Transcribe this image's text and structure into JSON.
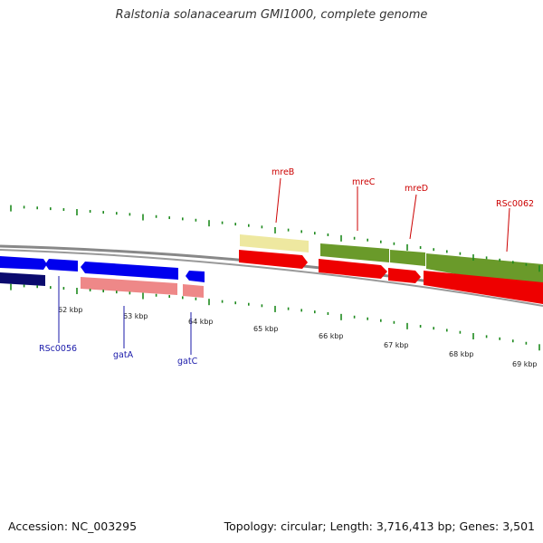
{
  "title": "Ralstonia solanacearum GMI1000, complete genome",
  "footer": {
    "accession": "Accession: NC_003295",
    "summary": "Topology: circular; Length: 3,716,413 bp; Genes: 3,501"
  },
  "kbp_labels": [
    "62 kbp",
    "63 kbp",
    "64 kbp",
    "65 kbp",
    "66 kbp",
    "67 kbp",
    "68 kbp",
    "69 kbp"
  ],
  "gene_labels_bottom": [
    "RSc0056",
    "gatA",
    "gatC"
  ],
  "gene_labels_top": [
    "mreB",
    "mreC",
    "mreD",
    "RSc0062"
  ],
  "colors": {
    "cds_forward": "#ee0000",
    "cds_reverse": "#0000ee",
    "dark_reverse": "#0a0a6e",
    "pink_feature": "#ee8888",
    "olive_feature": "#6a9a2a",
    "yellow_feature": "#eee8a0",
    "tick": "#1e8a1e",
    "backbone": "#888888",
    "label_top": "#cc0000",
    "label_bottom": "#1a1aaa"
  }
}
